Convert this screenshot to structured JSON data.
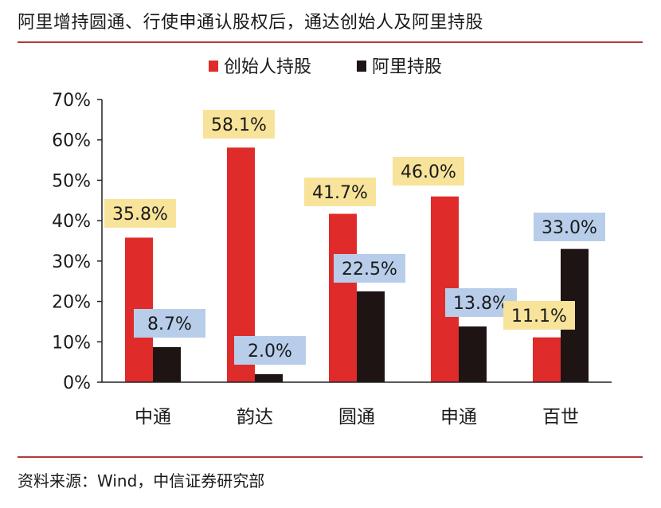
{
  "title": "阿里增持圆通、行使申通认股权后，通达创始人及阿里持股",
  "source": "资料来源：Wind，中信证券研究部",
  "chart_data": {
    "type": "bar",
    "categories": [
      "中通",
      "韵达",
      "圆通",
      "申通",
      "百世"
    ],
    "series": [
      {
        "name": "创始人持股",
        "values": [
          35.8,
          58.1,
          41.7,
          46.0,
          11.1
        ],
        "labels": [
          "35.8%",
          "58.1%",
          "41.7%",
          "46.0%",
          "11.1%"
        ]
      },
      {
        "name": "阿里持股",
        "values": [
          8.7,
          2.0,
          22.5,
          13.8,
          33.0
        ],
        "labels": [
          "8.7%",
          "2.0%",
          "22.5%",
          "13.8%",
          "33.0%"
        ]
      }
    ],
    "ylim": [
      0,
      70
    ],
    "yticks": [
      0,
      10,
      20,
      30,
      40,
      50,
      60,
      70
    ],
    "ytick_labels": [
      "0%",
      "10%",
      "20%",
      "30%",
      "40%",
      "50%",
      "60%",
      "70%"
    ],
    "legend_position": "top",
    "colors": {
      "founder": "#e02b2b",
      "alibaba": "#1e1414",
      "founder_label_bg": "#f8e39a",
      "alibaba_label_bg": "#b7cdea",
      "axis": "#222222"
    }
  }
}
